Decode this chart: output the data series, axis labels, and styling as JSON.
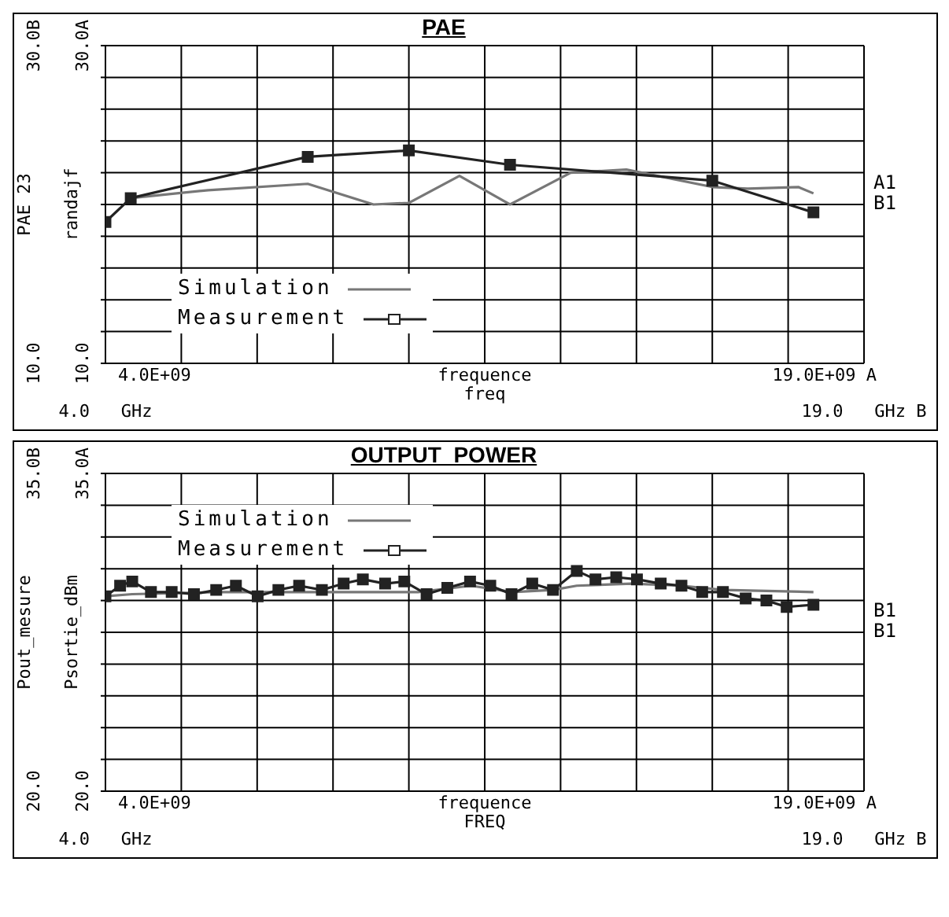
{
  "chart_data": [
    {
      "type": "line",
      "title": "PAE",
      "xlabel": "frequence\nfreq",
      "ylabel": "randajf",
      "y2label": "PAE 23",
      "xlim": [
        4,
        19
      ],
      "xticks": [
        {
          "value": 4,
          "label": "4.0   GHz"
        },
        {
          "value": 5.5,
          "label": null
        },
        {
          "value": 7,
          "label": null
        },
        {
          "value": 8.5,
          "label": null
        },
        {
          "value": 10,
          "label": null
        },
        {
          "value": 11.5,
          "label": null
        },
        {
          "value": 13,
          "label": null
        },
        {
          "value": 14.5,
          "label": null
        },
        {
          "value": 16,
          "label": null
        },
        {
          "value": 17.5,
          "label": null
        },
        {
          "value": 19,
          "label": "19.0   GHz B"
        }
      ],
      "ylim": [
        10,
        30
      ],
      "yticks": [
        {
          "value": 10,
          "label": "10.0"
        },
        {
          "value": 12,
          "label": null
        },
        {
          "value": 14,
          "label": null
        },
        {
          "value": 16,
          "label": null
        },
        {
          "value": 18,
          "label": null
        },
        {
          "value": 20,
          "label": null
        },
        {
          "value": 22,
          "label": null
        },
        {
          "value": 24,
          "label": null
        },
        {
          "value": 26,
          "label": null
        },
        {
          "value": 28,
          "label": null
        },
        {
          "value": 30,
          "label": "30.0A"
        }
      ],
      "y2lim": [
        10,
        30
      ],
      "y2ticks": [
        {
          "value": 10,
          "label": "10.0"
        },
        {
          "value": 30,
          "label": "30.0B"
        }
      ],
      "grid": true,
      "legend": "bottom left",
      "annotations": [
        "4.0E+09",
        "19.0E+09 A",
        "A1",
        "B1"
      ],
      "series": [
        {
          "name": "Simulation",
          "color": "#777777",
          "marker": "none",
          "x": [
            4.5,
            6.03,
            8.0,
            9.3,
            10.0,
            11.0,
            12.0,
            13.2,
            14.3,
            16.0,
            16.7,
            17.7,
            18.0
          ],
          "values": [
            20.4,
            20.9,
            21.3,
            20.0,
            20.1,
            21.8,
            20.0,
            22.0,
            22.2,
            21.1,
            21.0,
            21.1,
            20.7
          ]
        },
        {
          "name": "Measurement",
          "color": "#222222",
          "marker": "square",
          "x": [
            4.0,
            4.5,
            8.0,
            10.0,
            12.0,
            16.0,
            18.0
          ],
          "values": [
            18.9,
            20.4,
            23.0,
            23.4,
            22.5,
            21.5,
            19.5
          ]
        }
      ]
    },
    {
      "type": "line",
      "title": "OUTPUT_POWER",
      "xlabel": "frequence\nFREQ",
      "ylabel": "Psortie_dBm",
      "y2label": "Pout_mesure",
      "xlim": [
        4,
        19
      ],
      "xticks": [
        {
          "value": 4,
          "label": "4.0   GHz"
        },
        {
          "value": 5.5,
          "label": null
        },
        {
          "value": 7,
          "label": null
        },
        {
          "value": 8.5,
          "label": null
        },
        {
          "value": 10,
          "label": null
        },
        {
          "value": 11.5,
          "label": null
        },
        {
          "value": 13,
          "label": null
        },
        {
          "value": 14.5,
          "label": null
        },
        {
          "value": 16,
          "label": null
        },
        {
          "value": 17.5,
          "label": null
        },
        {
          "value": 19,
          "label": "19.0   GHz B"
        }
      ],
      "ylim": [
        20,
        35
      ],
      "yticks": [
        {
          "value": 20,
          "label": "20.0"
        },
        {
          "value": 21.5,
          "label": null
        },
        {
          "value": 23,
          "label": null
        },
        {
          "value": 24.5,
          "label": null
        },
        {
          "value": 26,
          "label": null
        },
        {
          "value": 27.5,
          "label": null
        },
        {
          "value": 29,
          "label": null
        },
        {
          "value": 30.5,
          "label": null
        },
        {
          "value": 32,
          "label": null
        },
        {
          "value": 33.5,
          "label": null
        },
        {
          "value": 35,
          "label": "35.0A"
        }
      ],
      "y2lim": [
        20,
        35
      ],
      "y2ticks": [
        {
          "value": 20,
          "label": "20.0"
        },
        {
          "value": 35,
          "label": "35.0B"
        }
      ],
      "grid": true,
      "legend": "top left",
      "annotations": [
        "4.0E+09",
        "19.0E+09 A",
        "B1",
        "B1"
      ],
      "series": [
        {
          "name": "Simulation",
          "color": "#777777",
          "marker": "none",
          "x": [
            4.0,
            4.53,
            6.19,
            8.54,
            10.18,
            11.23,
            12.05,
            12.85,
            13.32,
            14.4,
            15.39,
            16.21,
            18.0
          ],
          "values": [
            29.2,
            29.3,
            29.4,
            29.4,
            29.4,
            29.7,
            29.4,
            29.5,
            29.7,
            29.8,
            29.7,
            29.5,
            29.4
          ]
        },
        {
          "name": "Measurement",
          "color": "#222222",
          "marker": "square",
          "x": [
            4.0,
            4.29,
            4.53,
            4.9,
            5.31,
            5.75,
            6.19,
            6.58,
            7.01,
            7.42,
            7.83,
            8.28,
            8.71,
            9.09,
            9.53,
            9.91,
            10.35,
            10.76,
            11.21,
            11.61,
            12.03,
            12.44,
            12.85,
            13.32,
            13.69,
            14.1,
            14.51,
            14.98,
            15.39,
            15.8,
            16.21,
            16.66,
            17.07,
            17.47,
            18.0
          ],
          "values": [
            29.2,
            29.7,
            29.9,
            29.4,
            29.4,
            29.3,
            29.5,
            29.7,
            29.2,
            29.5,
            29.7,
            29.5,
            29.8,
            30.0,
            29.8,
            29.9,
            29.3,
            29.6,
            29.9,
            29.7,
            29.3,
            29.8,
            29.5,
            30.4,
            30.0,
            30.1,
            30.0,
            29.8,
            29.7,
            29.4,
            29.4,
            29.1,
            29.0,
            28.7,
            28.8
          ]
        }
      ]
    }
  ]
}
